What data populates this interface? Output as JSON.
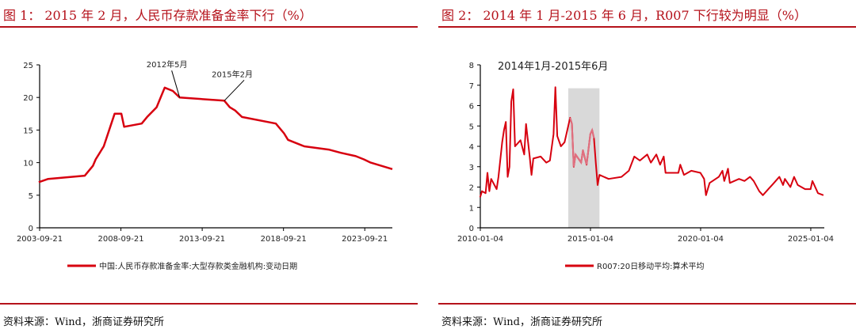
{
  "panels": [
    {
      "title": "图 1：  2015 年 2 月，人民币存款准备金率下行（%）",
      "source": "资料来源：Wind，浙商证券研究所"
    },
    {
      "title": "图 2：  2014 年 1 月-2015 年 6 月，R007 下行较为明显（%）",
      "source": "资料来源：Wind，浙商证券研究所"
    }
  ],
  "chart_data": [
    {
      "type": "line",
      "title": "",
      "xlabel": "",
      "ylabel": "",
      "ylim": [
        0,
        25
      ],
      "yticks": [
        0,
        5,
        10,
        15,
        20,
        25
      ],
      "xticks": [
        "2003-09-21",
        "2008-09-21",
        "2013-09-21",
        "2018-09-21",
        "2023-09-21"
      ],
      "xlim": [
        "2003-09-21",
        "2025-06-01"
      ],
      "legend_position": "bottom",
      "color": "#d7000f",
      "annotations": [
        {
          "text": "2012年5月",
          "date": "2012-05",
          "value": 20.0
        },
        {
          "text": "2015年2月",
          "date": "2015-02",
          "value": 19.5
        }
      ],
      "series": [
        {
          "name": "中国:人民币存款准备金率:大型存款类金融机构:变动日期",
          "x": [
            "2003-09",
            "2004-04",
            "2006-07",
            "2007-01",
            "2007-03",
            "2007-09",
            "2008-05",
            "2008-10",
            "2008-12",
            "2010-01",
            "2010-05",
            "2010-12",
            "2011-06",
            "2011-12",
            "2012-05",
            "2015-02",
            "2015-06",
            "2015-10",
            "2016-03",
            "2018-04",
            "2018-10",
            "2019-01",
            "2020-01",
            "2021-07",
            "2022-04",
            "2023-03",
            "2023-09",
            "2024-02",
            "2025-06"
          ],
          "y": [
            7.0,
            7.5,
            8.0,
            9.5,
            10.5,
            12.5,
            17.5,
            17.5,
            15.5,
            16.0,
            17.0,
            18.5,
            21.5,
            21.0,
            20.0,
            19.5,
            18.5,
            18.0,
            17.0,
            16.0,
            14.5,
            13.5,
            12.5,
            12.0,
            11.5,
            11.0,
            10.5,
            10.0,
            9.0
          ]
        }
      ]
    },
    {
      "type": "line",
      "title": "",
      "xlabel": "",
      "ylabel": "",
      "ylim": [
        0,
        8
      ],
      "yticks": [
        0,
        1,
        2,
        3,
        4,
        5,
        6,
        7,
        8
      ],
      "xticks": [
        "2010-01-04",
        "2015-01-04",
        "2020-01-04",
        "2025-01-04"
      ],
      "xlim": [
        "2010-01-04",
        "2025-08-15"
      ],
      "legend_position": "bottom",
      "color": "#d7000f",
      "highlight": {
        "label": "2014年1月-2015年6月",
        "start": "2014-01",
        "end": "2015-06",
        "color": "#d9d9d9"
      },
      "series": [
        {
          "name": "R007:20日移动平均:算术平均",
          "x": [
            "2010-01",
            "2010-02",
            "2010-04",
            "2010-05",
            "2010-06",
            "2010-07",
            "2010-10",
            "2010-11",
            "2011-01",
            "2011-02",
            "2011-03",
            "2011-04",
            "2011-05",
            "2011-06",
            "2011-07",
            "2011-08",
            "2011-11",
            "2012-01",
            "2012-02",
            "2012-03",
            "2012-04",
            "2012-05",
            "2012-06",
            "2012-10",
            "2013-01",
            "2013-03",
            "2013-05",
            "2013-06",
            "2013-07",
            "2013-09",
            "2013-11",
            "2014-02",
            "2014-03",
            "2014-04",
            "2014-05",
            "2014-08",
            "2014-09",
            "2014-11",
            "2015-01",
            "2015-02",
            "2015-03",
            "2015-04",
            "2015-05",
            "2015-06",
            "2015-11",
            "2016-06",
            "2016-10",
            "2017-01",
            "2017-04",
            "2017-08",
            "2017-10",
            "2018-01",
            "2018-03",
            "2018-05",
            "2018-06",
            "2019-01",
            "2019-02",
            "2019-04",
            "2019-08",
            "2020-01",
            "2020-03",
            "2020-04",
            "2020-06",
            "2020-11",
            "2021-01",
            "2021-02",
            "2021-04",
            "2021-05",
            "2021-10",
            "2022-01",
            "2022-04",
            "2022-06",
            "2022-09",
            "2022-11",
            "2023-02",
            "2023-04",
            "2023-08",
            "2023-10",
            "2023-11",
            "2024-02",
            "2024-04",
            "2024-06",
            "2024-10",
            "2025-01",
            "2025-02",
            "2025-04",
            "2025-05",
            "2025-08"
          ],
          "y": [
            1.5,
            1.8,
            1.7,
            2.7,
            1.8,
            2.4,
            1.9,
            2.5,
            4.2,
            4.8,
            5.2,
            2.5,
            3.0,
            6.2,
            6.8,
            4.0,
            4.3,
            3.6,
            5.1,
            4.3,
            3.5,
            2.6,
            3.4,
            3.5,
            3.2,
            3.3,
            4.6,
            6.9,
            4.5,
            4.0,
            4.2,
            5.4,
            5.1,
            3.0,
            3.6,
            3.2,
            3.8,
            3.1,
            4.6,
            4.8,
            4.4,
            3.2,
            2.1,
            2.6,
            2.4,
            2.5,
            2.8,
            3.5,
            3.3,
            3.6,
            3.2,
            3.6,
            3.1,
            3.5,
            2.7,
            2.7,
            3.1,
            2.6,
            2.8,
            2.7,
            2.4,
            1.6,
            2.2,
            2.5,
            2.8,
            2.3,
            2.9,
            2.2,
            2.4,
            2.3,
            2.5,
            2.3,
            1.8,
            1.6,
            1.9,
            2.1,
            2.5,
            2.1,
            2.4,
            2.0,
            2.5,
            2.1,
            1.9,
            1.9,
            2.3,
            1.9,
            1.7,
            1.6
          ]
        }
      ]
    }
  ]
}
